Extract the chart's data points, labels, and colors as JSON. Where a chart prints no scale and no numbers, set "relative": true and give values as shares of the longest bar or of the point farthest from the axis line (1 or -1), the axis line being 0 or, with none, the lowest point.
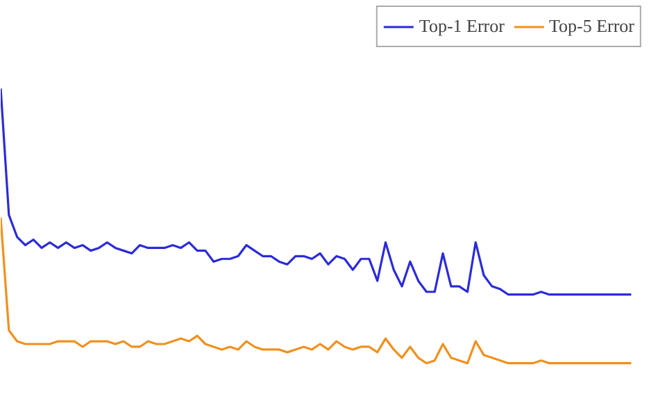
{
  "chart_data": {
    "type": "line",
    "relative": true,
    "legend": "top right",
    "categories": [
      null,
      null,
      null,
      null,
      null,
      null,
      null,
      null,
      null,
      null,
      null,
      null,
      null,
      null,
      null,
      null,
      null,
      null,
      null,
      null,
      null,
      null,
      null,
      null,
      null,
      null,
      null,
      null,
      null,
      null,
      null,
      null,
      null,
      null,
      null,
      null,
      null,
      null,
      null,
      null,
      null,
      null,
      null,
      null,
      null,
      null,
      null,
      null,
      null,
      null,
      null,
      null,
      null,
      null,
      null,
      null,
      null,
      null,
      null,
      null,
      null,
      null,
      null,
      null,
      null,
      null,
      null,
      null,
      null,
      null,
      null,
      null,
      null,
      null,
      null,
      null,
      null,
      null
    ],
    "series": [
      {
        "name": "Top-1 Error",
        "color": "#2b2bd9",
        "values": [
          1.0,
          0.54,
          0.46,
          0.43,
          0.45,
          0.42,
          0.44,
          0.42,
          0.44,
          0.42,
          0.43,
          0.41,
          0.42,
          0.44,
          0.42,
          0.41,
          0.4,
          0.43,
          0.42,
          0.42,
          0.42,
          0.43,
          0.42,
          0.44,
          0.41,
          0.41,
          0.37,
          0.38,
          0.38,
          0.39,
          0.43,
          0.41,
          0.39,
          0.39,
          0.37,
          0.36,
          0.39,
          0.39,
          0.38,
          0.4,
          0.36,
          0.39,
          0.38,
          0.34,
          0.38,
          0.38,
          0.3,
          0.44,
          0.34,
          0.28,
          0.37,
          0.3,
          0.26,
          0.26,
          0.4,
          0.28,
          0.28,
          0.26,
          0.44,
          0.32,
          0.28,
          0.27,
          0.25,
          0.25,
          0.25,
          0.25,
          0.26,
          0.25,
          0.25,
          0.25,
          0.25,
          0.25,
          0.25,
          0.25,
          0.25,
          0.25,
          0.25,
          0.25
        ]
      },
      {
        "name": "Top-5 Error",
        "color": "#f0901e",
        "values": [
          0.53,
          0.12,
          0.08,
          0.07,
          0.07,
          0.07,
          0.07,
          0.08,
          0.08,
          0.08,
          0.06,
          0.08,
          0.08,
          0.08,
          0.07,
          0.08,
          0.06,
          0.06,
          0.08,
          0.07,
          0.07,
          0.08,
          0.09,
          0.08,
          0.1,
          0.07,
          0.06,
          0.05,
          0.06,
          0.05,
          0.08,
          0.06,
          0.05,
          0.05,
          0.05,
          0.04,
          0.05,
          0.06,
          0.05,
          0.07,
          0.05,
          0.08,
          0.06,
          0.05,
          0.06,
          0.06,
          0.04,
          0.09,
          0.05,
          0.02,
          0.06,
          0.02,
          0,
          0.01,
          0.07,
          0.02,
          0.01,
          0,
          0.08,
          0.03,
          0.02,
          0.01,
          0,
          0,
          0,
          0,
          0.01,
          0,
          0,
          0,
          0,
          0,
          0,
          0,
          0,
          0,
          0,
          0
        ]
      }
    ]
  }
}
